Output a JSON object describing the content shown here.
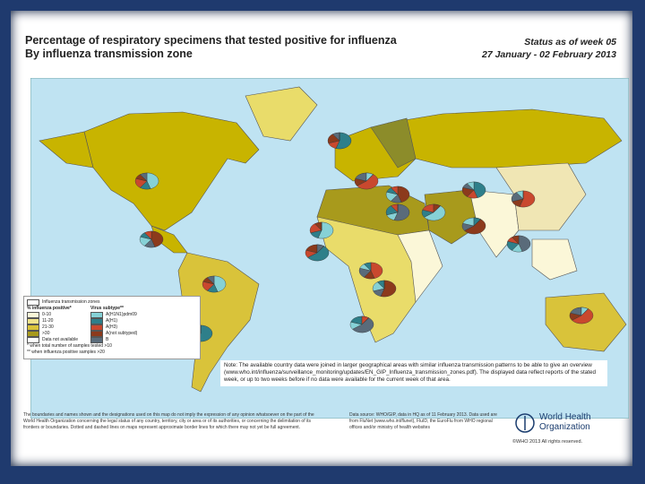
{
  "header": {
    "title": [
      "Percentage of respiratory specimens that tested positive for influenza",
      "By influenza transmission zone"
    ],
    "status": "Status as of week 05",
    "dates": "27 January - 02 February 2013"
  },
  "legend": {
    "zone_label": "Influenza transmission zones",
    "subtype_title": "Virus subtype**",
    "positive_title": "% influenza positive*",
    "bins": [
      {
        "label": "0-10",
        "color": "#fbf7d8"
      },
      {
        "label": "11-20",
        "color": "#f0e38a"
      },
      {
        "label": "21-30",
        "color": "#d9c33a"
      },
      {
        "label": ">30",
        "color": "#a89a1c"
      },
      {
        "label": "Data not available",
        "color": "#ffffff"
      }
    ],
    "subtypes": [
      {
        "label": "A(H1N1)pdm09",
        "color": "#86d1d6"
      },
      {
        "label": "A(H1)",
        "color": "#2e7f8a"
      },
      {
        "label": "A(H3)",
        "color": "#c9482e"
      },
      {
        "label": "A(not subtyped)",
        "color": "#8c3a1c"
      },
      {
        "label": "B",
        "color": "#5a6b7a"
      }
    ],
    "notes": [
      "* when total number of samples tested >10",
      "** when influenza positive samples >20"
    ]
  },
  "note": "Note: The available country data were joined in larger geographical areas with similar influenza transmission patterns to be able to give an overview (www.who.int/influenza/surveillance_monitoring/updates/EN_GIP_Influenza_transmission_zones.pdf). The displayed data reflect reports of the stated week, or up to two weeks before if no data were available for the current week of that area.",
  "footer": {
    "disclaimer": "The boundaries and names shown and the designations used on this map do not imply the expression of any opinion whatsoever on the part of the World Health Organization concerning the legal status of any country, territory, city or area or of its authorities, or concerning the delimitation of its frontiers or boundaries. Dotted and dashed lines on maps represent approximate border lines for which there may not yet be full agreement.",
    "source": "Data source: WHO/GIP, data in HQ as of 11 February 2013. Data used are from FluNet (www.who.int/flunet), FluID, the EuroFlu from WHO regional offices and/or ministry of health websites",
    "org": [
      "World Health",
      "Organization"
    ],
    "copyright": "©WHO 2013 All rights reserved."
  }
}
